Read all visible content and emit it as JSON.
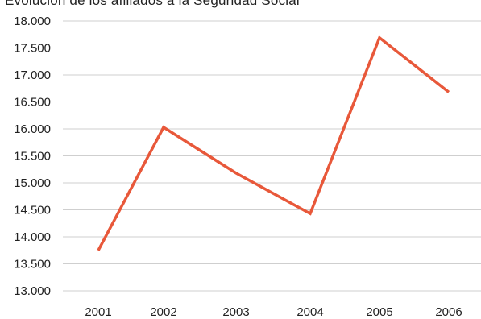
{
  "chart_data": {
    "type": "line",
    "title": "Evolución de los afiliados a la Seguridad Social",
    "categories": [
      "2001",
      "2002",
      "2003",
      "2004",
      "2005",
      "2006"
    ],
    "series": [
      {
        "values": [
          13750,
          16030,
          15180,
          14430,
          17690,
          16680
        ]
      }
    ],
    "ylim": [
      13000,
      18000
    ],
    "yticks": [
      "13.000",
      "13.500",
      "14.000",
      "14.500",
      "15.000",
      "15.500",
      "16.000",
      "16.500",
      "17.000",
      "17.500",
      "18.000"
    ],
    "ytick_values": [
      13000,
      13500,
      14000,
      14500,
      15000,
      15500,
      16000,
      16500,
      17000,
      17500,
      18000
    ],
    "grid": true,
    "legend": "none",
    "colors": {
      "line": "#e8583a",
      "grid": "#cfcfcf",
      "text": "#222222"
    }
  }
}
